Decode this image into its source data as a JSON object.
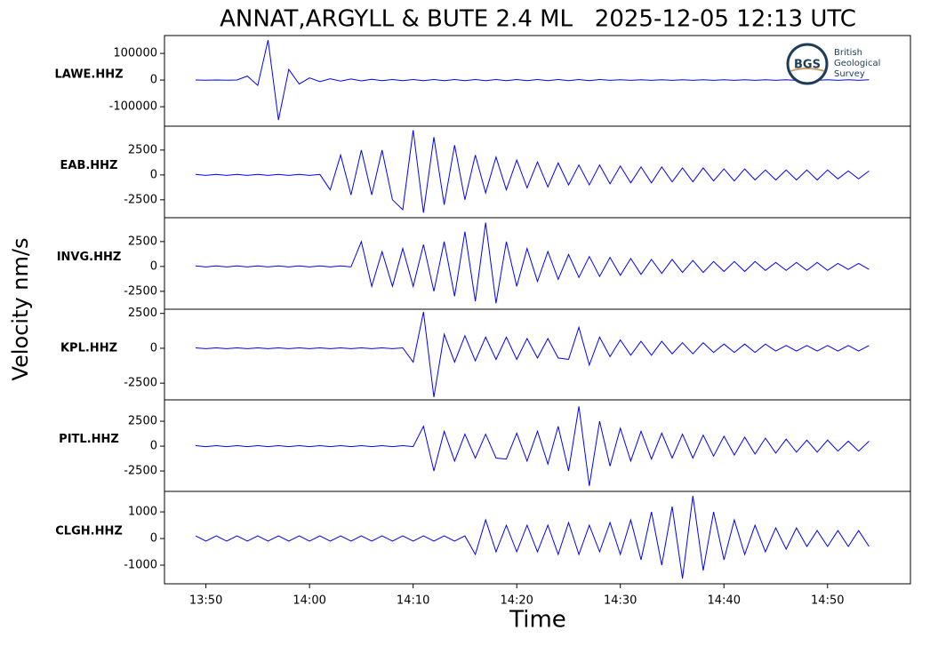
{
  "title": "ANNAT,ARGYLL & BUTE 2.4 ML   2025-12-05 12:13 UTC",
  "ylabel": "Velocity nm/s",
  "xlabel": "Time",
  "logo": {
    "mark": "BGS",
    "lines": [
      "British",
      "Geological",
      "Survey"
    ]
  },
  "chart_data": [
    {
      "type": "line",
      "label": "LAWE.HHZ",
      "color": "#0000ff",
      "x": [
        "13:49",
        "13:50",
        "13:51",
        "13:52",
        "13:53",
        "13:54",
        "13:55",
        "13:56",
        "13:57",
        "13:58",
        "13:59",
        "14:00",
        "14:01",
        "14:02",
        "14:03",
        "14:04",
        "14:05",
        "14:06",
        "14:07",
        "14:08",
        "14:09",
        "14:10",
        "14:11",
        "14:12",
        "14:13",
        "14:14",
        "14:15",
        "14:16",
        "14:17",
        "14:18",
        "14:19",
        "14:20",
        "14:21",
        "14:22",
        "14:23",
        "14:24",
        "14:25",
        "14:26",
        "14:27",
        "14:28",
        "14:29",
        "14:30",
        "14:31",
        "14:32",
        "14:33",
        "14:34",
        "14:35",
        "14:36",
        "14:37",
        "14:38",
        "14:39",
        "14:40",
        "14:41",
        "14:42",
        "14:43",
        "14:44",
        "14:45",
        "14:46",
        "14:47",
        "14:48",
        "14:49",
        "14:50",
        "14:51",
        "14:52",
        "14:53",
        "14:54"
      ],
      "values": [
        300,
        -300,
        300,
        -300,
        300,
        15000,
        -20000,
        150000,
        -150000,
        40000,
        -15000,
        8000,
        -6000,
        5000,
        -4000,
        4000,
        -3000,
        3000,
        -2000,
        2000,
        -2000,
        2000,
        -2000,
        2000,
        -2000,
        2000,
        -2000,
        2000,
        -2000,
        2000,
        -2000,
        2000,
        -2000,
        2000,
        -2000,
        2000,
        -2000,
        2000,
        -2000,
        2000,
        -1000,
        1000,
        -1000,
        1000,
        -1000,
        1000,
        -1000,
        1000,
        -1000,
        1000,
        -1000,
        1000,
        -1000,
        1000,
        -1000,
        1000,
        -1000,
        1000,
        -1000,
        1000,
        -1000,
        1000,
        -1000,
        1000,
        -1000,
        1000
      ],
      "xlim": [
        "13:46",
        "14:58"
      ],
      "ylim": [
        -173000,
        167000
      ],
      "yticks": [
        -100000,
        0,
        100000
      ]
    },
    {
      "type": "line",
      "label": "EAB.HHZ",
      "color": "#0000ff",
      "x": [
        "13:49",
        "13:50",
        "13:51",
        "13:52",
        "13:53",
        "13:54",
        "13:55",
        "13:56",
        "13:57",
        "13:58",
        "13:59",
        "14:00",
        "14:01",
        "14:02",
        "14:03",
        "14:04",
        "14:05",
        "14:06",
        "14:07",
        "14:08",
        "14:09",
        "14:10",
        "14:11",
        "14:12",
        "14:13",
        "14:14",
        "14:15",
        "14:16",
        "14:17",
        "14:18",
        "14:19",
        "14:20",
        "14:21",
        "14:22",
        "14:23",
        "14:24",
        "14:25",
        "14:26",
        "14:27",
        "14:28",
        "14:29",
        "14:30",
        "14:31",
        "14:32",
        "14:33",
        "14:34",
        "14:35",
        "14:36",
        "14:37",
        "14:38",
        "14:39",
        "14:40",
        "14:41",
        "14:42",
        "14:43",
        "14:44",
        "14:45",
        "14:46",
        "14:47",
        "14:48",
        "14:49",
        "14:50",
        "14:51",
        "14:52",
        "14:53",
        "14:54"
      ],
      "values": [
        50,
        -50,
        50,
        -50,
        50,
        -50,
        50,
        -50,
        50,
        -50,
        50,
        -50,
        50,
        -1500,
        2000,
        -2000,
        2500,
        -2000,
        2500,
        -2500,
        -3500,
        4500,
        -3800,
        3800,
        -3000,
        3000,
        -2500,
        2000,
        -1800,
        1800,
        -1500,
        1500,
        -1300,
        1300,
        -1200,
        1200,
        -1000,
        1000,
        -1000,
        1000,
        -900,
        900,
        -800,
        800,
        -800,
        800,
        -700,
        700,
        -700,
        700,
        -600,
        600,
        -600,
        600,
        -500,
        500,
        -500,
        500,
        -500,
        500,
        -500,
        500,
        -400,
        400,
        -400,
        400
      ],
      "xlim": [
        "13:46",
        "14:58"
      ],
      "ylim": [
        -4300,
        4900
      ],
      "yticks": [
        -2500,
        0,
        2500
      ]
    },
    {
      "type": "line",
      "label": "INVG.HHZ",
      "color": "#0000ff",
      "x": [
        "13:49",
        "13:50",
        "13:51",
        "13:52",
        "13:53",
        "13:54",
        "13:55",
        "13:56",
        "13:57",
        "13:58",
        "13:59",
        "14:00",
        "14:01",
        "14:02",
        "14:03",
        "14:04",
        "14:05",
        "14:06",
        "14:07",
        "14:08",
        "14:09",
        "14:10",
        "14:11",
        "14:12",
        "14:13",
        "14:14",
        "14:15",
        "14:16",
        "14:17",
        "14:18",
        "14:19",
        "14:20",
        "14:21",
        "14:22",
        "14:23",
        "14:24",
        "14:25",
        "14:26",
        "14:27",
        "14:28",
        "14:29",
        "14:30",
        "14:31",
        "14:32",
        "14:33",
        "14:34",
        "14:35",
        "14:36",
        "14:37",
        "14:38",
        "14:39",
        "14:40",
        "14:41",
        "14:42",
        "14:43",
        "14:44",
        "14:45",
        "14:46",
        "14:47",
        "14:48",
        "14:49",
        "14:50",
        "14:51",
        "14:52",
        "14:53",
        "14:54"
      ],
      "values": [
        50,
        -50,
        50,
        -50,
        50,
        -50,
        50,
        -50,
        50,
        -50,
        50,
        -50,
        50,
        -50,
        50,
        -50,
        2500,
        -2000,
        1500,
        -2000,
        1800,
        -2000,
        2200,
        -2500,
        2500,
        -3000,
        3500,
        -3500,
        4400,
        -3700,
        2500,
        -2000,
        1800,
        -1500,
        1500,
        -1300,
        1200,
        -1100,
        1000,
        -1000,
        900,
        -900,
        800,
        -800,
        700,
        -700,
        700,
        -600,
        600,
        -600,
        500,
        -500,
        500,
        -500,
        500,
        -400,
        400,
        -400,
        400,
        -400,
        400,
        -400,
        300,
        -300,
        300,
        -300
      ],
      "xlim": [
        "13:46",
        "14:58"
      ],
      "ylim": [
        -4300,
        4900
      ],
      "yticks": [
        -2500,
        0,
        2500
      ]
    },
    {
      "type": "line",
      "label": "KPL.HHZ",
      "color": "#0000ff",
      "x": [
        "13:49",
        "13:50",
        "13:51",
        "13:52",
        "13:53",
        "13:54",
        "13:55",
        "13:56",
        "13:57",
        "13:58",
        "13:59",
        "14:00",
        "14:01",
        "14:02",
        "14:03",
        "14:04",
        "14:05",
        "14:06",
        "14:07",
        "14:08",
        "14:09",
        "14:10",
        "14:11",
        "14:12",
        "14:13",
        "14:14",
        "14:15",
        "14:16",
        "14:17",
        "14:18",
        "14:19",
        "14:20",
        "14:21",
        "14:22",
        "14:23",
        "14:24",
        "14:25",
        "14:26",
        "14:27",
        "14:28",
        "14:29",
        "14:30",
        "14:31",
        "14:32",
        "14:33",
        "14:34",
        "14:35",
        "14:36",
        "14:37",
        "14:38",
        "14:39",
        "14:40",
        "14:41",
        "14:42",
        "14:43",
        "14:44",
        "14:45",
        "14:46",
        "14:47",
        "14:48",
        "14:49",
        "14:50",
        "14:51",
        "14:52",
        "14:53",
        "14:54"
      ],
      "values": [
        30,
        -30,
        30,
        -30,
        30,
        -30,
        30,
        -30,
        30,
        -30,
        30,
        -30,
        30,
        -30,
        30,
        -30,
        30,
        -30,
        30,
        -30,
        30,
        -1000,
        2600,
        -3500,
        1000,
        -1000,
        900,
        -900,
        800,
        -800,
        800,
        -800,
        700,
        -700,
        700,
        -700,
        -800,
        1500,
        -1200,
        800,
        -600,
        600,
        -500,
        500,
        -500,
        500,
        -400,
        400,
        -400,
        400,
        -300,
        300,
        -300,
        300,
        -300,
        300,
        -200,
        200,
        -200,
        200,
        -200,
        200,
        -200,
        200,
        -200,
        200
      ],
      "xlim": [
        "13:46",
        "14:58"
      ],
      "ylim": [
        -3700,
        2800
      ],
      "yticks": [
        -2500,
        0,
        2500
      ]
    },
    {
      "type": "line",
      "label": "PITL.HHZ",
      "color": "#0000ff",
      "x": [
        "13:49",
        "13:50",
        "13:51",
        "13:52",
        "13:53",
        "13:54",
        "13:55",
        "13:56",
        "13:57",
        "13:58",
        "13:59",
        "14:00",
        "14:01",
        "14:02",
        "14:03",
        "14:04",
        "14:05",
        "14:06",
        "14:07",
        "14:08",
        "14:09",
        "14:10",
        "14:11",
        "14:12",
        "14:13",
        "14:14",
        "14:15",
        "14:16",
        "14:17",
        "14:18",
        "14:19",
        "14:20",
        "14:21",
        "14:22",
        "14:23",
        "14:24",
        "14:25",
        "14:26",
        "14:27",
        "14:28",
        "14:29",
        "14:30",
        "14:31",
        "14:32",
        "14:33",
        "14:34",
        "14:35",
        "14:36",
        "14:37",
        "14:38",
        "14:39",
        "14:40",
        "14:41",
        "14:42",
        "14:43",
        "14:44",
        "14:45",
        "14:46",
        "14:47",
        "14:48",
        "14:49",
        "14:50",
        "14:51",
        "14:52",
        "14:53",
        "14:54"
      ],
      "values": [
        50,
        -50,
        50,
        -50,
        50,
        -50,
        50,
        -50,
        50,
        -50,
        50,
        -50,
        50,
        -50,
        50,
        -50,
        50,
        -50,
        50,
        -50,
        50,
        -50,
        2000,
        -2500,
        1500,
        -1500,
        1200,
        -1200,
        1200,
        -1200,
        -1300,
        1300,
        -1500,
        1500,
        -1800,
        2000,
        -2500,
        4000,
        -4000,
        2500,
        -2000,
        1800,
        -1500,
        1500,
        -1300,
        1300,
        -1200,
        1200,
        -1200,
        1100,
        -1000,
        1000,
        -900,
        900,
        -800,
        800,
        -700,
        700,
        -600,
        600,
        -600,
        600,
        -500,
        500,
        -500,
        500
      ],
      "xlim": [
        "13:46",
        "14:58"
      ],
      "ylim": [
        -4550,
        4650
      ],
      "yticks": [
        -2500,
        0,
        2500
      ]
    },
    {
      "type": "line",
      "label": "CLGH.HHZ",
      "color": "#0000ff",
      "x": [
        "13:49",
        "13:50",
        "13:51",
        "13:52",
        "13:53",
        "13:54",
        "13:55",
        "13:56",
        "13:57",
        "13:58",
        "13:59",
        "14:00",
        "14:01",
        "14:02",
        "14:03",
        "14:04",
        "14:05",
        "14:06",
        "14:07",
        "14:08",
        "14:09",
        "14:10",
        "14:11",
        "14:12",
        "14:13",
        "14:14",
        "14:15",
        "14:16",
        "14:17",
        "14:18",
        "14:19",
        "14:20",
        "14:21",
        "14:22",
        "14:23",
        "14:24",
        "14:25",
        "14:26",
        "14:27",
        "14:28",
        "14:29",
        "14:30",
        "14:31",
        "14:32",
        "14:33",
        "14:34",
        "14:35",
        "14:36",
        "14:37",
        "14:38",
        "14:39",
        "14:40",
        "14:41",
        "14:42",
        "14:43",
        "14:44",
        "14:45",
        "14:46",
        "14:47",
        "14:48",
        "14:49",
        "14:50",
        "14:51",
        "14:52",
        "14:53",
        "14:54"
      ],
      "values": [
        100,
        -100,
        100,
        -100,
        100,
        -100,
        100,
        -100,
        100,
        -100,
        100,
        -100,
        100,
        -100,
        100,
        -100,
        100,
        -100,
        100,
        -100,
        100,
        -100,
        100,
        -100,
        100,
        -100,
        100,
        -600,
        700,
        -500,
        500,
        -500,
        500,
        -500,
        500,
        -600,
        600,
        -600,
        500,
        -500,
        600,
        -600,
        700,
        -800,
        1000,
        -1000,
        1200,
        -1500,
        1600,
        -1200,
        1000,
        -800,
        700,
        -600,
        500,
        -500,
        400,
        -400,
        400,
        -300,
        300,
        -300,
        300,
        -300,
        300,
        -300
      ],
      "xlim": [
        "13:46",
        "14:58"
      ],
      "ylim": [
        -1700,
        1770
      ],
      "yticks": [
        -1000,
        0,
        1000
      ],
      "xticks": [
        "13:50",
        "14:00",
        "14:10",
        "14:20",
        "14:30",
        "14:40",
        "14:50"
      ]
    }
  ]
}
